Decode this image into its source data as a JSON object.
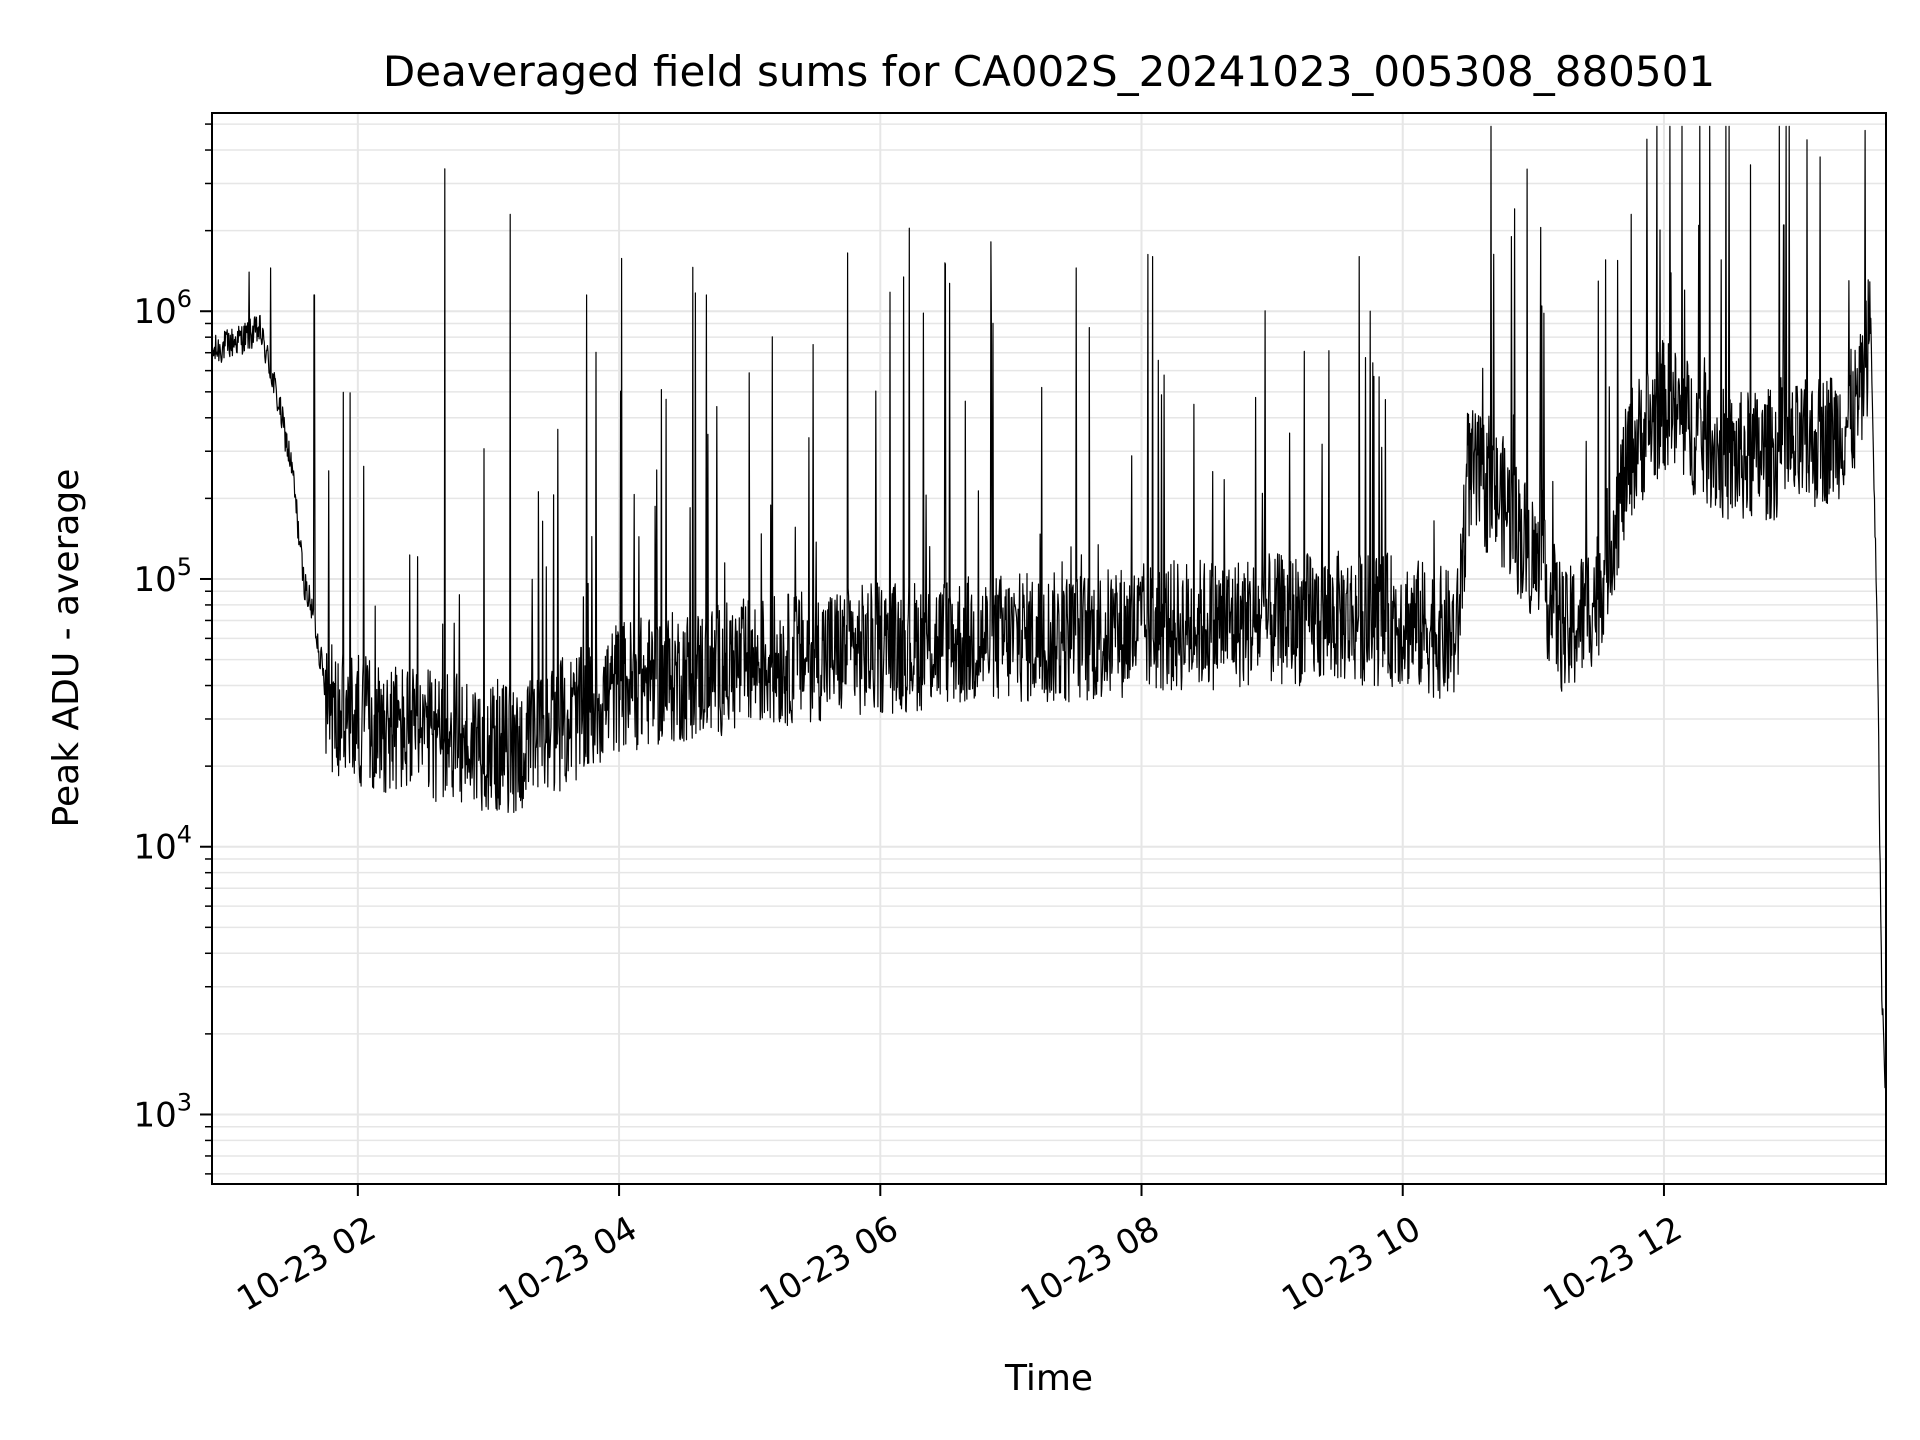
{
  "chart_data": {
    "type": "line",
    "title": "Deaveraged field sums for CA002S_20241023_005308_880501",
    "xlabel": "Time",
    "ylabel": "Peak ADU - average",
    "yscale": "log",
    "xlim": [
      "2024-10-23 00:53",
      "2024-10-23 13:42"
    ],
    "ylim": [
      550,
      5500000
    ],
    "grid": true,
    "line_color": "#000000",
    "grid_color": "#e6e6e6",
    "x_ticks": [
      {
        "t": "2024-10-23 02:00",
        "label": "10-23 02"
      },
      {
        "t": "2024-10-23 04:00",
        "label": "10-23 04"
      },
      {
        "t": "2024-10-23 06:00",
        "label": "10-23 06"
      },
      {
        "t": "2024-10-23 08:00",
        "label": "10-23 08"
      },
      {
        "t": "2024-10-23 10:00",
        "label": "10-23 10"
      },
      {
        "t": "2024-10-23 12:00",
        "label": "10-23 12"
      }
    ],
    "y_ticks": [
      {
        "value": 1000,
        "base": "10",
        "exp": "3"
      },
      {
        "value": 10000,
        "base": "10",
        "exp": "4"
      },
      {
        "value": 100000,
        "base": "10",
        "exp": "5"
      },
      {
        "value": 1000000,
        "base": "10",
        "exp": "6"
      }
    ],
    "series": [
      {
        "x": [
          "00:53",
          "01:00",
          "01:08",
          "01:15",
          "01:20",
          "01:25",
          "01:30",
          "01:35",
          "01:40",
          "01:45",
          "01:50",
          "02:00",
          "02:15",
          "02:30",
          "02:45",
          "03:00",
          "03:15",
          "03:30",
          "03:45",
          "04:00",
          "04:20",
          "04:40",
          "05:00",
          "05:30",
          "06:00",
          "06:30",
          "07:00",
          "07:30",
          "08:00",
          "08:30",
          "09:00",
          "09:30",
          "10:00",
          "10:25",
          "10:30",
          "10:45",
          "11:00",
          "11:15",
          "11:30",
          "11:45",
          "12:00",
          "12:30",
          "13:00",
          "13:20",
          "13:30",
          "13:35",
          "13:38",
          "13:40",
          "13:42"
        ],
        "baseline": [
          700000,
          750000,
          800000,
          850000,
          600000,
          400000,
          250000,
          100000,
          70000,
          40000,
          30000,
          30000,
          28000,
          26000,
          25000,
          24000,
          23000,
          28000,
          32000,
          40000,
          42000,
          45000,
          48000,
          52000,
          55000,
          58000,
          60000,
          60000,
          65000,
          68000,
          70000,
          72000,
          70000,
          60000,
          250000,
          200000,
          120000,
          60000,
          90000,
          300000,
          450000,
          280000,
          300000,
          350000,
          450000,
          900000,
          60000,
          3000,
          1000
        ],
        "spikes": [
          {
            "t": "01:10",
            "v": 1400000
          },
          {
            "t": "01:20",
            "v": 1450000
          },
          {
            "t": "01:40",
            "v": 1150000
          },
          {
            "t": "02:40",
            "v": 3400000
          },
          {
            "t": "03:10",
            "v": 2300000
          },
          {
            "t": "03:45",
            "v": 1150000
          },
          {
            "t": "04:40",
            "v": 1150000
          },
          {
            "t": "05:45",
            "v": 1650000
          },
          {
            "t": "06:30",
            "v": 1500000
          },
          {
            "t": "07:30",
            "v": 1450000
          },
          {
            "t": "08:05",
            "v": 1600000
          },
          {
            "t": "09:40",
            "v": 1600000
          },
          {
            "t": "10:50",
            "v": 1900000
          },
          {
            "t": "11:45",
            "v": 2300000
          },
          {
            "t": "12:55",
            "v": 2100000
          },
          {
            "t": "13:25",
            "v": 1300000
          }
        ]
      }
    ]
  }
}
